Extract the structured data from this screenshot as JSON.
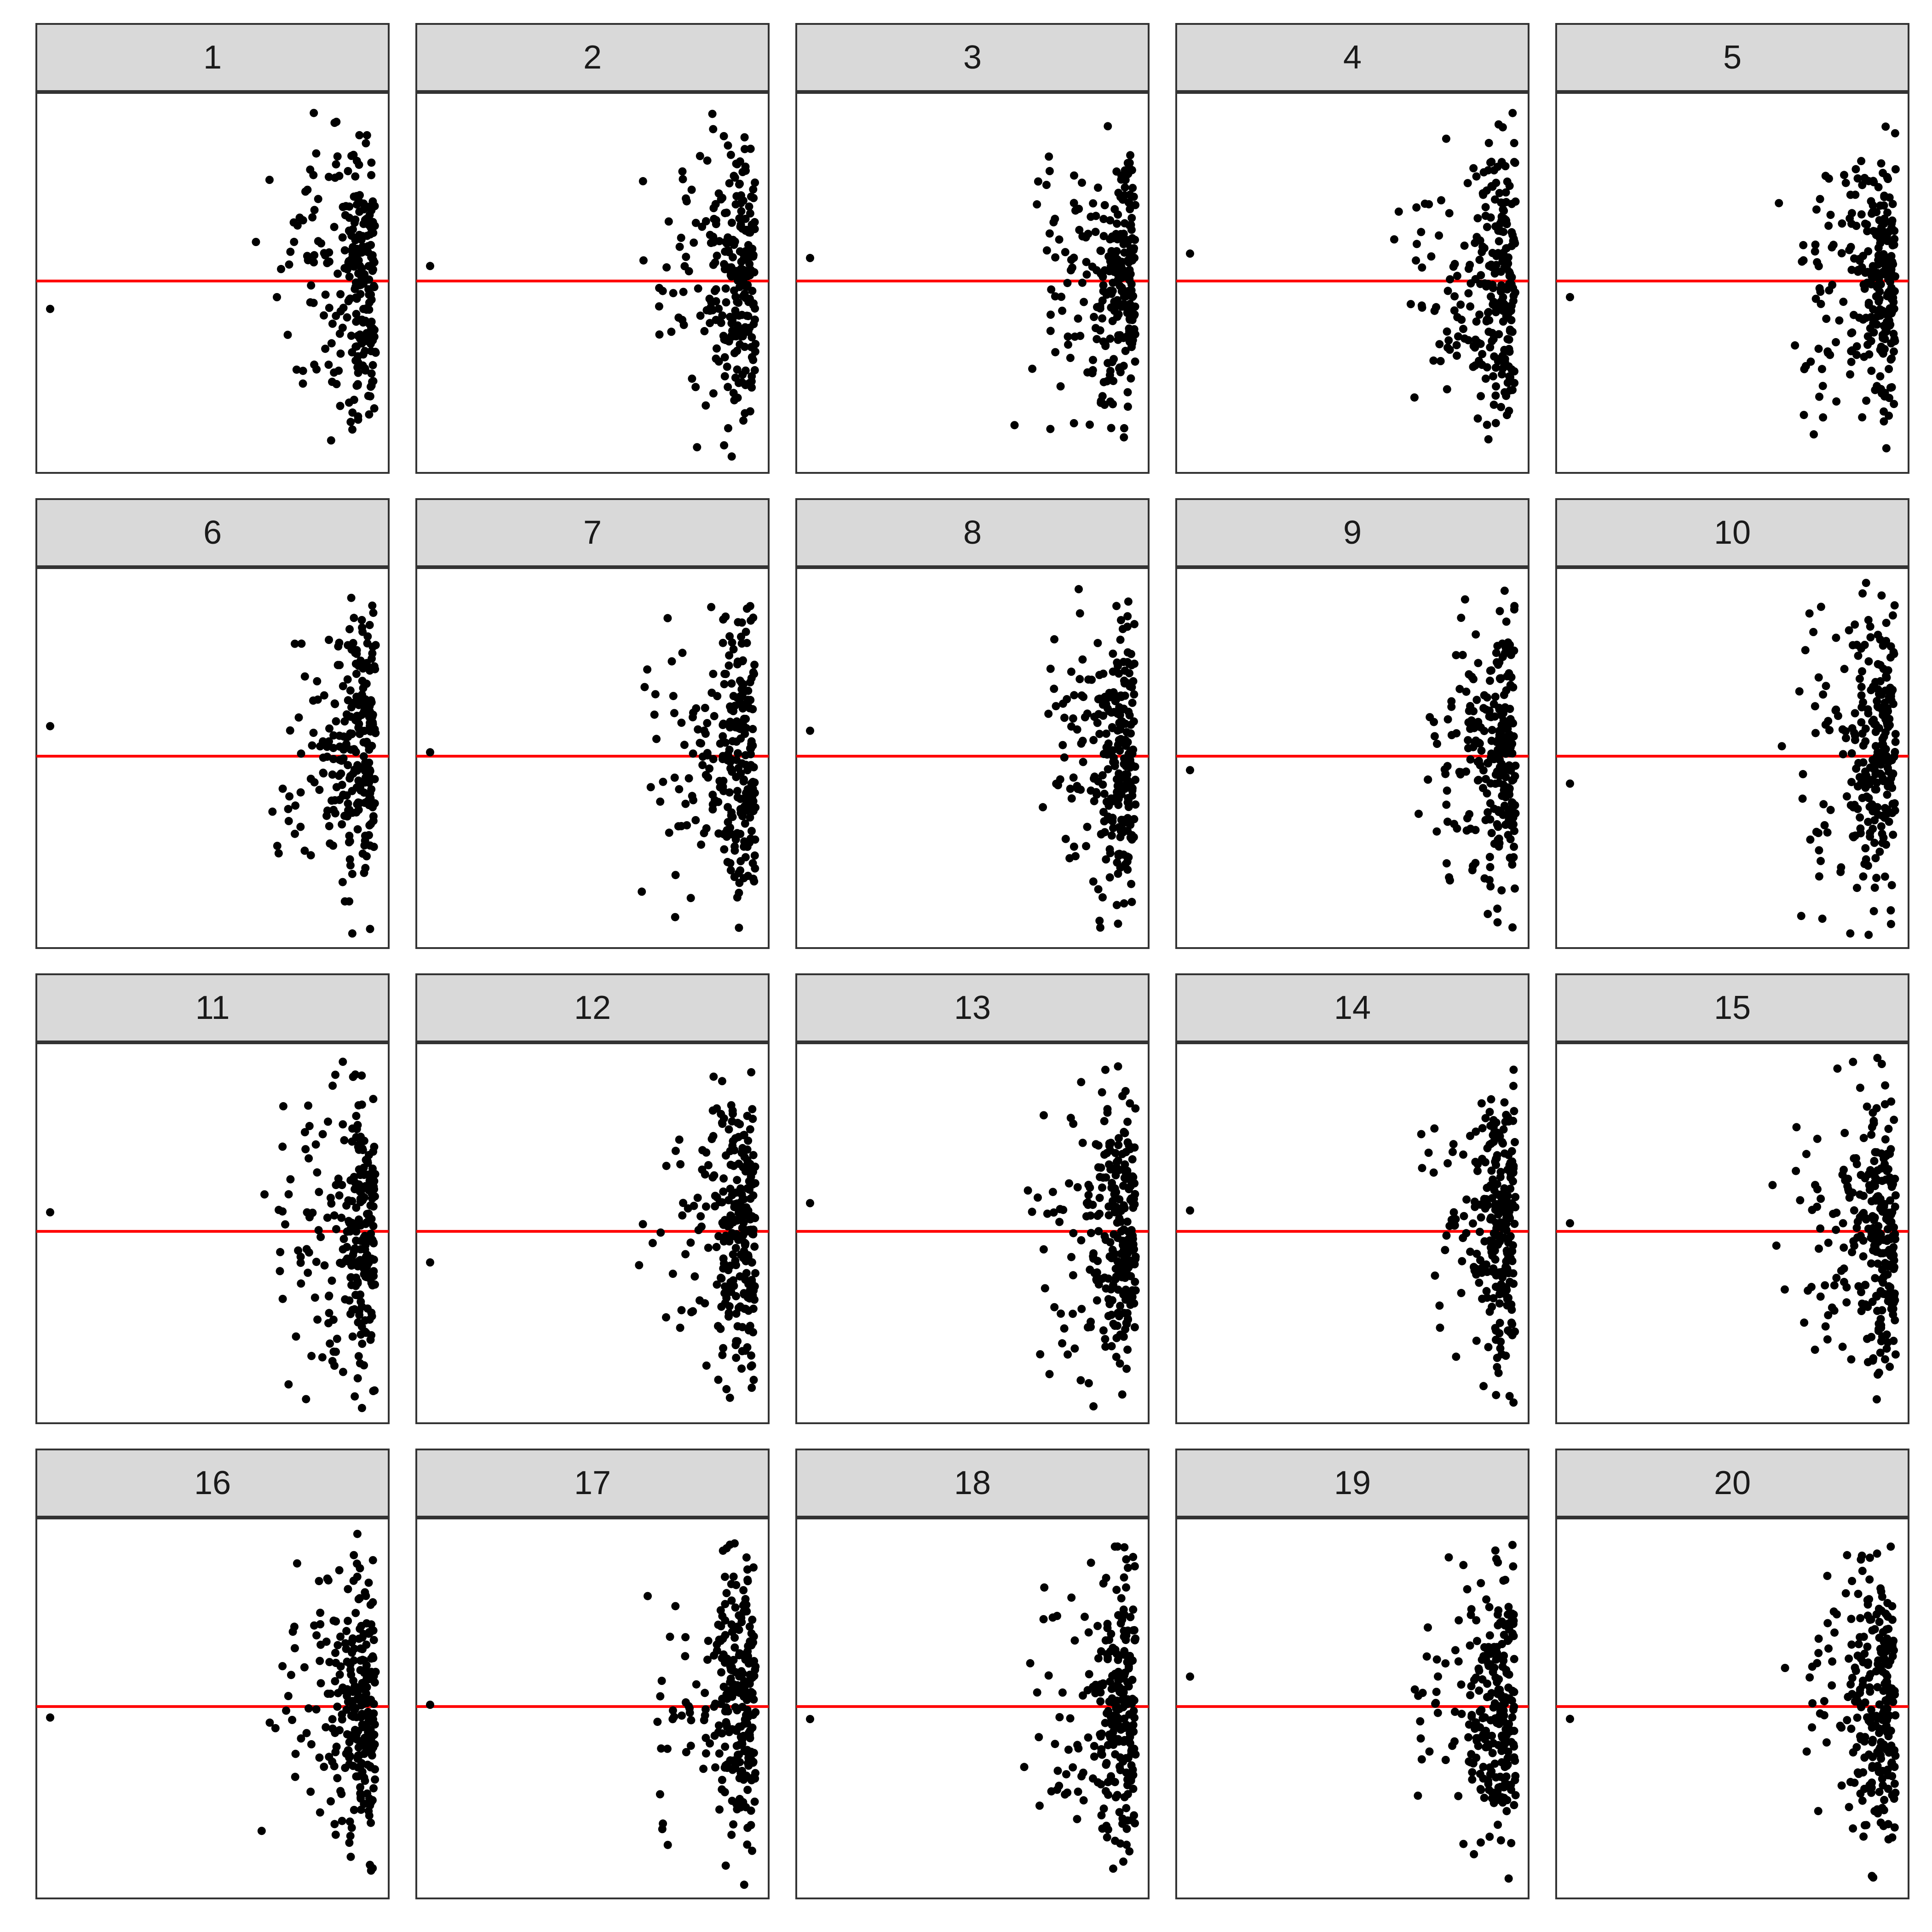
{
  "chart_data": {
    "type": "scatter",
    "layout": "faceted 4x5 grid",
    "reference_line_y": 0,
    "reference_line_color": "#ff0000",
    "point_color": "#000000",
    "grid": false,
    "axes_shown": false,
    "panels": [
      {
        "label": "1"
      },
      {
        "label": "2"
      },
      {
        "label": "3"
      },
      {
        "label": "4"
      },
      {
        "label": "5"
      },
      {
        "label": "6"
      },
      {
        "label": "7"
      },
      {
        "label": "8"
      },
      {
        "label": "9"
      },
      {
        "label": "10"
      },
      {
        "label": "11"
      },
      {
        "label": "12"
      },
      {
        "label": "13"
      },
      {
        "label": "14"
      },
      {
        "label": "15"
      },
      {
        "label": "16"
      },
      {
        "label": "17"
      },
      {
        "label": "18"
      },
      {
        "label": "19"
      },
      {
        "label": "20"
      }
    ]
  }
}
